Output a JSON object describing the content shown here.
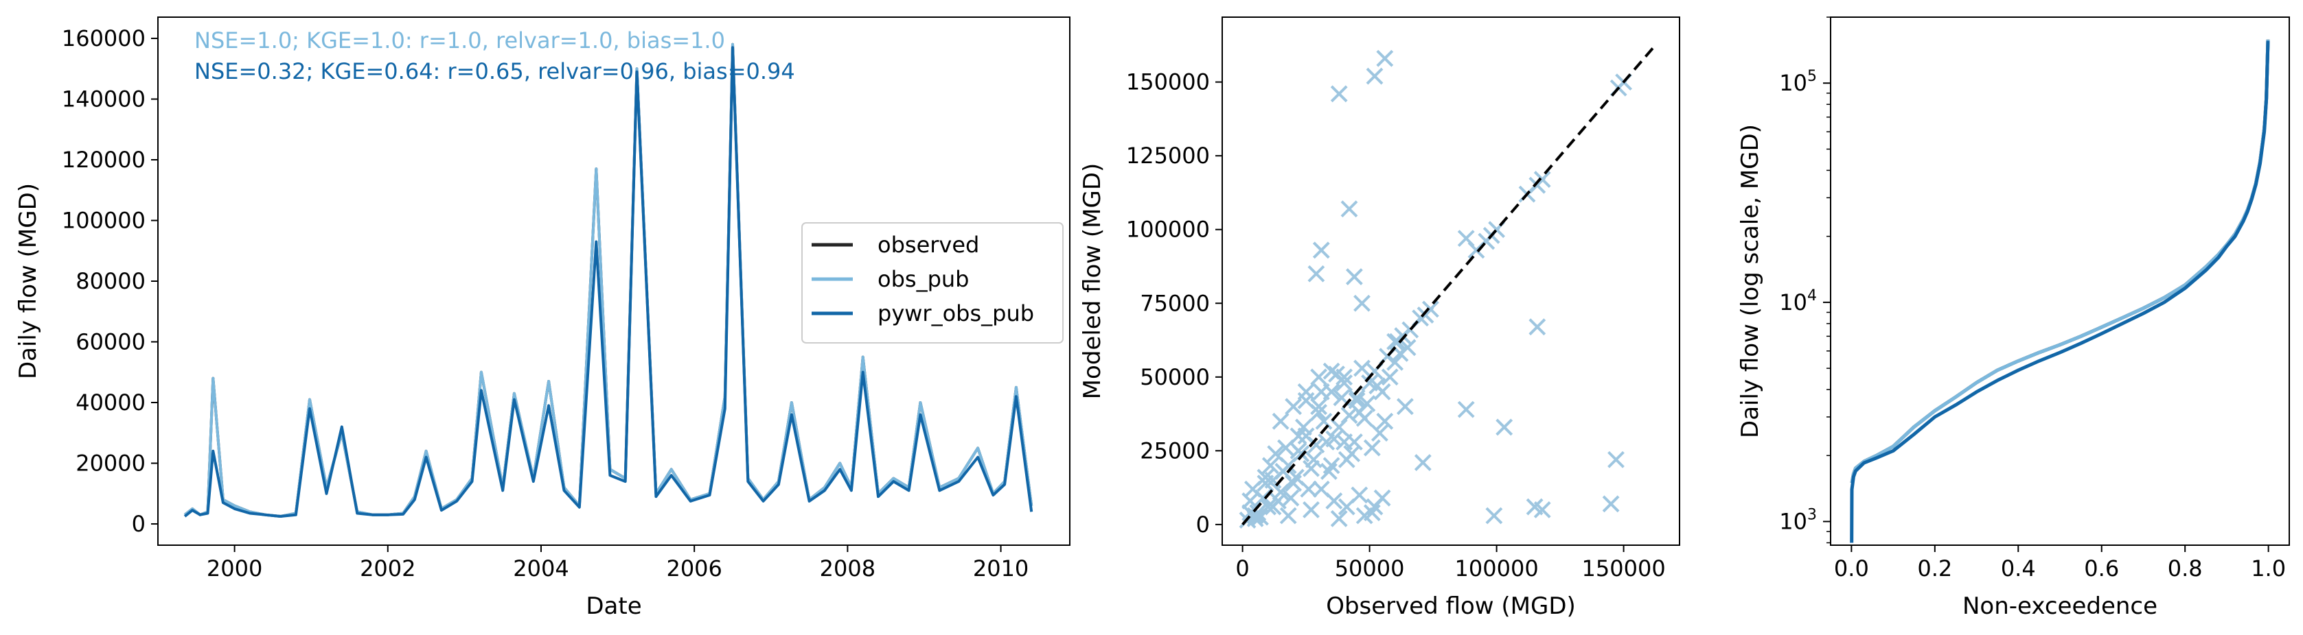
{
  "colors": {
    "observed": "#262626",
    "obs_pub": "#7bb8dd",
    "pywr_obs_pub": "#1166a7",
    "diagonal": "#000000",
    "scatter": "#9ec6e0"
  },
  "chart_data": [
    {
      "type": "line",
      "xlabel": "Date",
      "ylabel": "Daily flow (MGD)",
      "xlim": [
        1999.0,
        2010.9
      ],
      "ylim": [
        -7000,
        167000
      ],
      "xticks": [
        "2000",
        "2002",
        "2004",
        "2006",
        "2008",
        "2010"
      ],
      "yticks": [
        "0",
        "20000",
        "40000",
        "60000",
        "80000",
        "100000",
        "120000",
        "140000",
        "160000"
      ],
      "legend": {
        "placement": "center-right",
        "entries": [
          {
            "name": "observed",
            "color": "#262626"
          },
          {
            "name": "obs_pub",
            "color": "#7bb8dd"
          },
          {
            "name": "pywr_obs_pub",
            "color": "#1166a7"
          }
        ]
      },
      "annotations": [
        {
          "text": "NSE=1.0; KGE=1.0: r=1.0, relvar=1.0, bias=1.0",
          "color": "#7bb8dd"
        },
        {
          "text": "NSE=0.32; KGE=0.64: r=0.65, relvar=0.96, bias=0.94",
          "color": "#1166a7"
        }
      ],
      "series": [
        {
          "name": "observed",
          "x": [
            1999.35,
            1999.45,
            1999.55,
            1999.65,
            1999.72,
            1999.85,
            2000.0,
            2000.2,
            2000.4,
            2000.6,
            2000.8,
            2000.98,
            2001.2,
            2001.4,
            2001.6,
            2001.8,
            2002.0,
            2002.2,
            2002.35,
            2002.5,
            2002.7,
            2002.9,
            2003.1,
            2003.22,
            2003.5,
            2003.65,
            2003.9,
            2004.1,
            2004.3,
            2004.5,
            2004.72,
            2004.9,
            2005.1,
            2005.25,
            2005.5,
            2005.7,
            2005.95,
            2006.2,
            2006.4,
            2006.5,
            2006.7,
            2006.9,
            2007.1,
            2007.27,
            2007.5,
            2007.7,
            2007.9,
            2008.05,
            2008.2,
            2008.4,
            2008.6,
            2008.8,
            2008.95,
            2009.2,
            2009.45,
            2009.7,
            2009.9,
            2010.05,
            2010.2,
            2010.4
          ],
          "y": [
            3000,
            5000,
            3000,
            4000,
            48000,
            8000,
            6000,
            4000,
            3000,
            2500,
            3500,
            41000,
            12000,
            30000,
            4000,
            3000,
            3000,
            3500,
            9000,
            24000,
            5000,
            8000,
            15000,
            50000,
            12000,
            43000,
            15000,
            47000,
            12000,
            6000,
            117000,
            18000,
            15000,
            150000,
            10000,
            18000,
            8000,
            10000,
            42000,
            158000,
            15000,
            8000,
            14000,
            40000,
            8000,
            12000,
            20000,
            12000,
            55000,
            10000,
            15000,
            12000,
            40000,
            12000,
            15000,
            25000,
            10000,
            14000,
            45000,
            6000
          ]
        },
        {
          "name": "obs_pub",
          "x": [
            1999.35,
            1999.45,
            1999.55,
            1999.65,
            1999.72,
            1999.85,
            2000.0,
            2000.2,
            2000.4,
            2000.6,
            2000.8,
            2000.98,
            2001.2,
            2001.4,
            2001.6,
            2001.8,
            2002.0,
            2002.2,
            2002.35,
            2002.5,
            2002.7,
            2002.9,
            2003.1,
            2003.22,
            2003.5,
            2003.65,
            2003.9,
            2004.1,
            2004.3,
            2004.5,
            2004.72,
            2004.9,
            2005.1,
            2005.25,
            2005.5,
            2005.7,
            2005.95,
            2006.2,
            2006.4,
            2006.5,
            2006.7,
            2006.9,
            2007.1,
            2007.27,
            2007.5,
            2007.7,
            2007.9,
            2008.05,
            2008.2,
            2008.4,
            2008.6,
            2008.8,
            2008.95,
            2009.2,
            2009.45,
            2009.7,
            2009.9,
            2010.05,
            2010.2,
            2010.4
          ],
          "y": [
            3000,
            5000,
            3000,
            4000,
            48000,
            8000,
            6000,
            4000,
            3000,
            2500,
            3500,
            41000,
            12000,
            30000,
            4000,
            3000,
            3000,
            3500,
            9000,
            24000,
            5000,
            8000,
            15000,
            50000,
            12000,
            43000,
            15000,
            47000,
            12000,
            6000,
            117000,
            18000,
            15000,
            150000,
            10000,
            18000,
            8000,
            10000,
            42000,
            158000,
            15000,
            8000,
            14000,
            40000,
            8000,
            12000,
            20000,
            12000,
            55000,
            10000,
            15000,
            12000,
            40000,
            12000,
            15000,
            25000,
            10000,
            14000,
            45000,
            6000
          ]
        },
        {
          "name": "pywr_obs_pub",
          "x": [
            1999.35,
            1999.45,
            1999.55,
            1999.65,
            1999.72,
            1999.85,
            2000.0,
            2000.2,
            2000.4,
            2000.6,
            2000.8,
            2000.98,
            2001.2,
            2001.4,
            2001.6,
            2001.8,
            2002.0,
            2002.2,
            2002.35,
            2002.5,
            2002.7,
            2002.9,
            2003.1,
            2003.22,
            2003.5,
            2003.65,
            2003.9,
            2004.1,
            2004.3,
            2004.5,
            2004.72,
            2004.9,
            2005.1,
            2005.25,
            2005.5,
            2005.7,
            2005.95,
            2006.2,
            2006.4,
            2006.5,
            2006.7,
            2006.9,
            2007.1,
            2007.27,
            2007.5,
            2007.7,
            2007.9,
            2008.05,
            2008.2,
            2008.4,
            2008.6,
            2008.8,
            2008.95,
            2009.2,
            2009.45,
            2009.7,
            2009.9,
            2010.05,
            2010.2,
            2010.4
          ],
          "y": [
            2500,
            4500,
            3000,
            3500,
            24000,
            7000,
            5000,
            3500,
            3000,
            2500,
            3000,
            38000,
            10000,
            32000,
            3500,
            3000,
            3000,
            3200,
            8000,
            22000,
            4500,
            7500,
            14000,
            44000,
            11000,
            41000,
            14000,
            39000,
            11000,
            5500,
            93000,
            16000,
            14000,
            149000,
            9000,
            16000,
            7500,
            9500,
            38000,
            157000,
            14000,
            7500,
            13000,
            36000,
            7500,
            11000,
            18000,
            11000,
            50000,
            9000,
            14000,
            11000,
            36000,
            11000,
            14000,
            22000,
            9500,
            13000,
            42000,
            4000
          ]
        }
      ]
    },
    {
      "type": "scatter",
      "xlabel": "Observed flow (MGD)",
      "ylabel": "Modeled flow (MGD)",
      "xlim": [
        -8000,
        172000
      ],
      "ylim": [
        -7000,
        172000
      ],
      "xticks": [
        "0",
        "50000",
        "100000",
        "150000"
      ],
      "yticks": [
        "0",
        "25000",
        "50000",
        "75000",
        "100000",
        "125000",
        "150000"
      ],
      "reference_line": {
        "style": "dashed",
        "color": "#000000",
        "x": [
          0,
          163000
        ],
        "y": [
          0,
          163000
        ]
      },
      "series": [
        {
          "name": "",
          "marker": "x",
          "x": [
            2000,
            3000,
            5000,
            8000,
            10000,
            12000,
            15000,
            18000,
            20000,
            22000,
            25000,
            28000,
            30000,
            33000,
            35000,
            38000,
            40000,
            42000,
            45000,
            48000,
            50000,
            52000,
            55000,
            58000,
            60000,
            62000,
            65000,
            3000,
            6000,
            9000,
            12000,
            16000,
            19000,
            23000,
            26000,
            29000,
            32000,
            36000,
            39000,
            43000,
            46000,
            49000,
            53000,
            56000,
            4000,
            7000,
            11000,
            14000,
            17000,
            21000,
            24000,
            27000,
            31000,
            34000,
            37000,
            41000,
            44000,
            47000,
            51000,
            54000,
            57000,
            61000,
            5000,
            9000,
            13000,
            18000,
            22000,
            27000,
            31000,
            36000,
            41000,
            46000,
            51000,
            25000,
            30000,
            35000,
            40000,
            45000,
            15000,
            20000,
            25000,
            30000,
            60000,
            63000,
            66000,
            70000,
            72000,
            74000,
            88000,
            92000,
            96000,
            100000,
            98000,
            112000,
            116000,
            118000,
            148000,
            150000,
            38000,
            42000,
            29000,
            31000,
            44000,
            47000,
            52000,
            56000,
            64000,
            71000,
            99000,
            103000,
            116000,
            115000,
            145000,
            147000,
            118000,
            88000,
            38000,
            48000,
            52000,
            40000,
            35000,
            55000
          ],
          "y": [
            1500,
            4000,
            2000,
            9000,
            6000,
            15000,
            11000,
            20000,
            14000,
            25000,
            30000,
            22000,
            40000,
            28000,
            45000,
            33000,
            50000,
            37000,
            42000,
            36000,
            48000,
            52000,
            45000,
            50000,
            55000,
            58000,
            60000,
            8000,
            4000,
            14000,
            6000,
            18000,
            9000,
            24000,
            12000,
            27000,
            35000,
            29000,
            43000,
            24000,
            38000,
            41000,
            47000,
            35000,
            12000,
            2500,
            20000,
            8000,
            26000,
            16000,
            33000,
            19000,
            45000,
            18000,
            51000,
            22000,
            28000,
            53000,
            26000,
            31000,
            57000,
            62000,
            3000,
            16000,
            24000,
            3000,
            30000,
            5000,
            12000,
            8000,
            6000,
            10000,
            4000,
            45000,
            50000,
            52000,
            48000,
            43000,
            35000,
            40000,
            42000,
            38000,
            62000,
            64000,
            66000,
            70000,
            71000,
            73000,
            97000,
            93000,
            96000,
            100000,
            98000,
            112000,
            115000,
            117000,
            148000,
            150000,
            146000,
            107000,
            85000,
            93000,
            84000,
            75000,
            152000,
            158000,
            40000,
            21000,
            3000,
            33000,
            67000,
            6000,
            7000,
            22000,
            5000,
            39000,
            2000,
            3000,
            6000,
            28000,
            20000,
            9000
          ]
        }
      ]
    },
    {
      "type": "line",
      "xlabel": "Non-exceedence",
      "ylabel": "Daily flow (log scale, MGD)",
      "yscale": "log",
      "xlim": [
        -0.05,
        1.05
      ],
      "ylim": [
        780,
        200000
      ],
      "xticks": [
        "0.0",
        "0.2",
        "0.4",
        "0.6",
        "0.8",
        "1.0"
      ],
      "yticks": [
        "10^3",
        "10^4",
        "10^5"
      ],
      "series": [
        {
          "name": "observed",
          "x": [
            0.001,
            0.005,
            0.01,
            0.03,
            0.06,
            0.1,
            0.15,
            0.2,
            0.25,
            0.3,
            0.35,
            0.4,
            0.45,
            0.5,
            0.55,
            0.6,
            0.65,
            0.7,
            0.75,
            0.8,
            0.85,
            0.88,
            0.9,
            0.92,
            0.94,
            0.95,
            0.96,
            0.97,
            0.98,
            0.99,
            0.995,
            0.999
          ],
          "y": [
            1500,
            1650,
            1750,
            1880,
            2000,
            2200,
            2700,
            3200,
            3700,
            4300,
            4900,
            5400,
            5900,
            6400,
            7000,
            7700,
            8500,
            9400,
            10500,
            12000,
            14500,
            16500,
            18300,
            20500,
            24000,
            26500,
            30000,
            35000,
            44000,
            62000,
            85000,
            158000
          ]
        },
        {
          "name": "obs_pub",
          "x": [
            0.001,
            0.005,
            0.01,
            0.03,
            0.06,
            0.1,
            0.15,
            0.2,
            0.25,
            0.3,
            0.35,
            0.4,
            0.45,
            0.5,
            0.55,
            0.6,
            0.65,
            0.7,
            0.75,
            0.8,
            0.85,
            0.88,
            0.9,
            0.92,
            0.94,
            0.95,
            0.96,
            0.97,
            0.98,
            0.99,
            0.995,
            0.999
          ],
          "y": [
            1500,
            1650,
            1750,
            1880,
            2000,
            2200,
            2700,
            3200,
            3700,
            4300,
            4900,
            5400,
            5900,
            6400,
            7000,
            7700,
            8500,
            9400,
            10500,
            12000,
            14500,
            16500,
            18300,
            20500,
            24000,
            26500,
            30000,
            35000,
            44000,
            62000,
            85000,
            158000
          ]
        },
        {
          "name": "pywr_obs_pub",
          "x": [
            0.0005,
            0.001,
            0.005,
            0.01,
            0.03,
            0.06,
            0.1,
            0.15,
            0.2,
            0.25,
            0.3,
            0.35,
            0.4,
            0.45,
            0.5,
            0.55,
            0.6,
            0.65,
            0.7,
            0.75,
            0.8,
            0.85,
            0.88,
            0.9,
            0.92,
            0.94,
            0.95,
            0.96,
            0.97,
            0.98,
            0.99,
            0.995,
            0.999
          ],
          "y": [
            800,
            1400,
            1600,
            1700,
            1850,
            1950,
            2100,
            2500,
            3000,
            3400,
            3900,
            4400,
            4900,
            5400,
            5900,
            6500,
            7200,
            8000,
            8900,
            10000,
            11600,
            14000,
            16000,
            18000,
            20000,
            23500,
            26000,
            29500,
            34500,
            43000,
            60000,
            84000,
            156000
          ]
        }
      ]
    }
  ]
}
